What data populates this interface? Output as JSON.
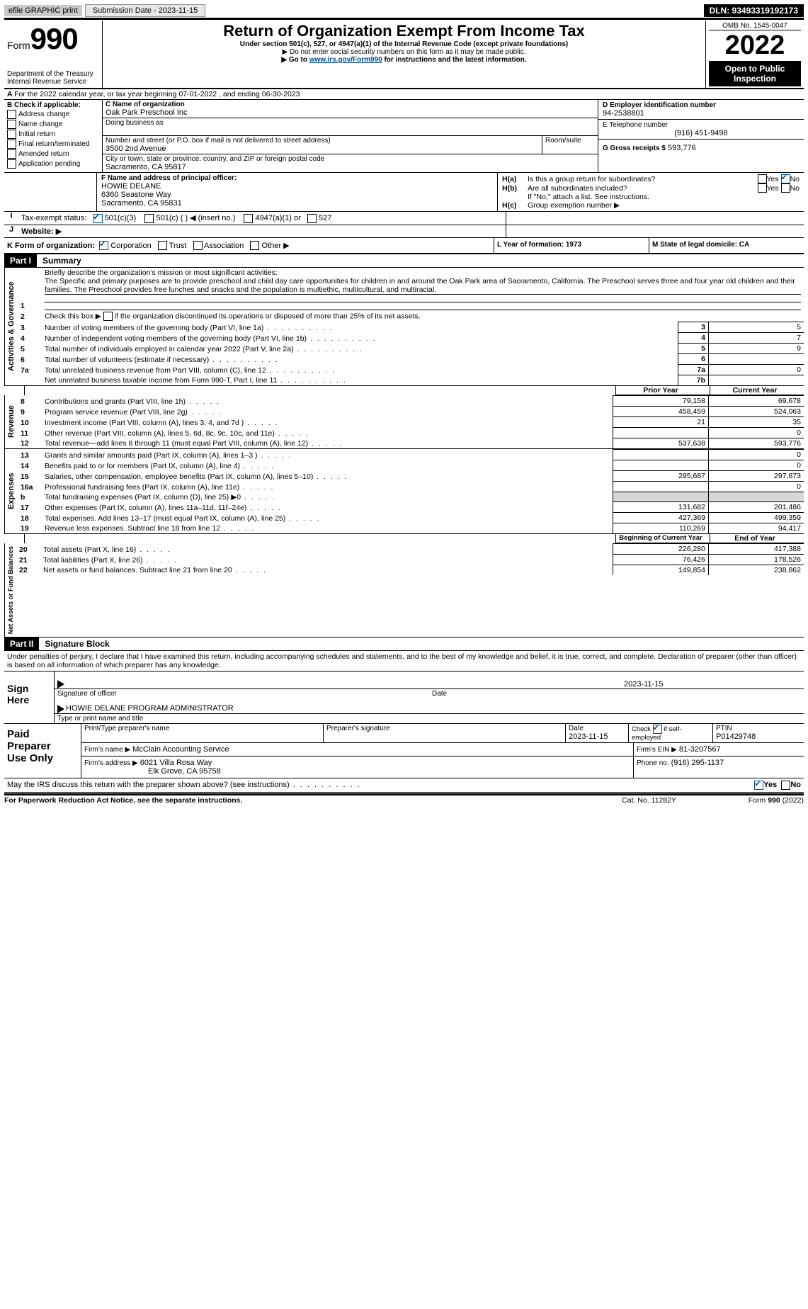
{
  "topbar": {
    "efile": "efile GRAPHIC print",
    "submission_label": "Submission Date - 2023-11-15",
    "dln": "DLN: 93493319192173"
  },
  "header": {
    "form_word": "Form",
    "form_no": "990",
    "title": "Return of Organization Exempt From Income Tax",
    "sub1": "Under section 501(c), 527, or 4947(a)(1) of the Internal Revenue Code (except private foundations)",
    "sub2": "▶ Do not enter social security numbers on this form as it may be made public.",
    "sub3_pre": "▶ Go to ",
    "sub3_link": "www.irs.gov/Form990",
    "sub3_post": " for instructions and the latest information.",
    "dept": "Department of the Treasury",
    "irs": "Internal Revenue Service",
    "omb": "OMB No. 1545-0047",
    "year": "2022",
    "inspect": "Open to Public Inspection"
  },
  "A": {
    "line": "For the 2022 calendar year, or tax year beginning 07-01-2022   , and ending 06-30-2023"
  },
  "B": {
    "label": "B Check if applicable:",
    "items": [
      "Address change",
      "Name change",
      "Initial return",
      "Final return/terminated",
      "Amended return",
      "Application pending"
    ]
  },
  "C": {
    "name_label": "C Name of organization",
    "name": "Oak Park Preschool Inc",
    "dba_label": "Doing business as",
    "street_label": "Number and street (or P.O. box if mail is not delivered to street address)",
    "room_label": "Room/suite",
    "street": "3500 2nd Avenue",
    "city_label": "City or town, state or province, country, and ZIP or foreign postal code",
    "city": "Sacramento, CA  95817"
  },
  "D": {
    "label": "D Employer identification number",
    "value": "94-2538801"
  },
  "E": {
    "label": "E Telephone number",
    "value": "(916) 451-9498"
  },
  "G": {
    "label": "G Gross receipts $",
    "value": "593,776"
  },
  "F": {
    "label": "F  Name and address of principal officer:",
    "name": "HOWIE DELANE",
    "addr1": "6360 Seastone Way",
    "addr2": "Sacramento, CA  95831"
  },
  "H": {
    "a": "Is this a group return for subordinates?",
    "b": "Are all subordinates included?",
    "b_note": "If \"No,\" attach a list. See instructions.",
    "c": "Group exemption number ▶",
    "yes": "Yes",
    "no": "No",
    "ha": "H(a)",
    "hb": "H(b)",
    "hc": "H(c)"
  },
  "I": {
    "label": "Tax-exempt status:",
    "o501c3": "501(c)(3)",
    "o501c": "501(c) (   ) ◀ (insert no.)",
    "o4947": "4947(a)(1) or",
    "o527": "527"
  },
  "J": {
    "label": "Website: ▶"
  },
  "K": {
    "label": "K Form of organization:",
    "corp": "Corporation",
    "trust": "Trust",
    "assoc": "Association",
    "other": "Other ▶"
  },
  "L": {
    "label": "L Year of formation: 1973"
  },
  "M": {
    "label": "M State of legal domicile: CA"
  },
  "part1": {
    "hdr": "Part I",
    "title": "Summary",
    "q1": "Briefly describe the organization's mission or most significant activities:",
    "mission": "The Specific and primary purposes are to provide preschool and child day care opportunities for children in and around the Oak Park area of Sacramento, California. The Preschool serves three and four year old children and their families. The Preschool provides free lunches and snacks and the population is multiethic, multicultural, and multiracial.",
    "q2": "Check this box ▶        if the organization discontinued its operations or disposed of more than 25% of its net assets.",
    "lines_gov": [
      {
        "n": "3",
        "t": "Number of voting members of the governing body (Part VI, line 1a)",
        "box": "3",
        "v": "5"
      },
      {
        "n": "4",
        "t": "Number of independent voting members of the governing body (Part VI, line 1b)",
        "box": "4",
        "v": "7"
      },
      {
        "n": "5",
        "t": "Total number of individuals employed in calendar year 2022 (Part V, line 2a)",
        "box": "5",
        "v": "9"
      },
      {
        "n": "6",
        "t": "Total number of volunteers (estimate if necessary)",
        "box": "6",
        "v": ""
      },
      {
        "n": "7a",
        "t": "Total unrelated business revenue from Part VIII, column (C), line 12",
        "box": "7a",
        "v": "0"
      },
      {
        "n": "",
        "t": "Net unrelated business taxable income from Form 990-T, Part I, line 11",
        "box": "7b",
        "v": ""
      }
    ],
    "prior": "Prior Year",
    "current": "Current Year",
    "beg": "Beginning of Current Year",
    "end": "End of Year",
    "rev": [
      {
        "n": "8",
        "t": "Contributions and grants (Part VIII, line 1h)",
        "p": "79,158",
        "c": "69,678"
      },
      {
        "n": "9",
        "t": "Program service revenue (Part VIII, line 2g)",
        "p": "458,459",
        "c": "524,063"
      },
      {
        "n": "10",
        "t": "Investment income (Part VIII, column (A), lines 3, 4, and 7d )",
        "p": "21",
        "c": "35"
      },
      {
        "n": "11",
        "t": "Other revenue (Part VIII, column (A), lines 5, 6d, 8c, 9c, 10c, and 11e)",
        "p": "",
        "c": "0"
      },
      {
        "n": "12",
        "t": "Total revenue—add lines 8 through 11 (must equal Part VIII, column (A), line 12)",
        "p": "537,638",
        "c": "593,776"
      }
    ],
    "exp": [
      {
        "n": "13",
        "t": "Grants and similar amounts paid (Part IX, column (A), lines 1–3 )",
        "p": "",
        "c": "0"
      },
      {
        "n": "14",
        "t": "Benefits paid to or for members (Part IX, column (A), line 4)",
        "p": "",
        "c": "0"
      },
      {
        "n": "15",
        "t": "Salaries, other compensation, employee benefits (Part IX, column (A), lines 5–10)",
        "p": "295,687",
        "c": "297,873"
      },
      {
        "n": "16a",
        "t": "Professional fundraising fees (Part IX, column (A), line 11e)",
        "p": "",
        "c": "0"
      },
      {
        "n": "b",
        "t": "Total fundraising expenses (Part IX, column (D), line 25) ▶0",
        "p": "__shade__",
        "c": "__shade__"
      },
      {
        "n": "17",
        "t": "Other expenses (Part IX, column (A), lines 11a–11d, 11f–24e)",
        "p": "131,682",
        "c": "201,486"
      },
      {
        "n": "18",
        "t": "Total expenses. Add lines 13–17 (must equal Part IX, column (A), line 25)",
        "p": "427,369",
        "c": "499,359"
      },
      {
        "n": "19",
        "t": "Revenue less expenses. Subtract line 18 from line 12",
        "p": "110,269",
        "c": "94,417"
      }
    ],
    "net": [
      {
        "n": "20",
        "t": "Total assets (Part X, line 16)",
        "p": "226,280",
        "c": "417,388"
      },
      {
        "n": "21",
        "t": "Total liabilities (Part X, line 26)",
        "p": "76,426",
        "c": "178,526"
      },
      {
        "n": "22",
        "t": "Net assets or fund balances. Subtract line 21 from line 20",
        "p": "149,854",
        "c": "238,862"
      }
    ],
    "tab_gov": "Activities & Governance",
    "tab_rev": "Revenue",
    "tab_exp": "Expenses",
    "tab_net": "Net Assets or Fund Balances"
  },
  "part2": {
    "hdr": "Part II",
    "title": "Signature Block",
    "decl": "Under penalties of perjury, I declare that I have examined this return, including accompanying schedules and statements, and to the best of my knowledge and belief, it is true, correct, and complete. Declaration of preparer (other than officer) is based on all information of which preparer has any knowledge.",
    "sign": "Sign Here",
    "sig_officer": "Signature of officer",
    "sig_date": "2023-11-15",
    "date": "Date",
    "printed": "HOWIE DELANE  PROGRAM ADMINISTRATOR",
    "printed_lbl": "Type or print name and title",
    "paid": "Paid Preparer Use Only",
    "pp_name_lbl": "Print/Type preparer's name",
    "pp_sig_lbl": "Preparer's signature",
    "pp_date_lbl": "Date",
    "pp_date": "2023-11-15",
    "pp_check_lbl": "Check         if self-employed",
    "ptin_lbl": "PTIN",
    "ptin": "P01429748",
    "firm_name_lbl": "Firm's name    ▶",
    "firm_name": "McClain Accounting Service",
    "firm_ein_lbl": "Firm's EIN ▶",
    "firm_ein": "81-3207567",
    "firm_addr_lbl": "Firm's address ▶",
    "firm_addr1": "6021 Villa Rosa Way",
    "firm_addr2": "Elk Grove, CA  95758",
    "phone_lbl": "Phone no.",
    "phone": "(916) 295-1137",
    "discuss": "May the IRS discuss this return with the preparer shown above? (see instructions)"
  },
  "footer": {
    "left": "For Paperwork Reduction Act Notice, see the separate instructions.",
    "mid": "Cat. No. 11282Y",
    "right": "Form 990 (2022)",
    "form_word": "Form ",
    "form_no": "990",
    "form_yr": " (2022)"
  },
  "labels": {
    "b": "b",
    "yes": "Yes",
    "no": "No",
    "one": "1",
    "two": "2"
  }
}
